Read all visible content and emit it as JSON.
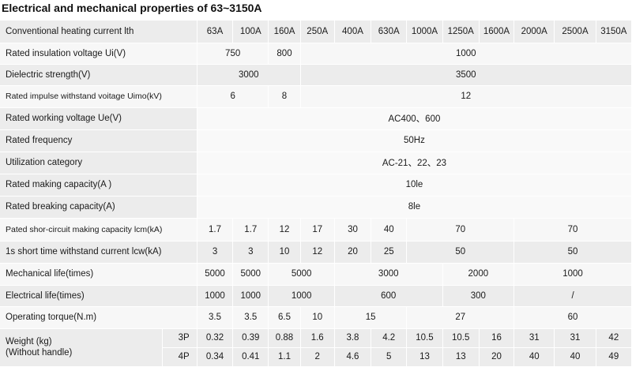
{
  "title": "Electrical and mechanical properties of 63~3150A",
  "header": {
    "label": "Conventional heating current lth",
    "currents": [
      "63A",
      "100A",
      "160A",
      "250A",
      "400A",
      "630A",
      "1000A",
      "1250A",
      "1600A",
      "2000A",
      "2500A",
      "3150A"
    ]
  },
  "rows": {
    "insulation": {
      "label": "Rated insulation voltage Ui(V)",
      "v1": "750",
      "v2": "800",
      "v3": "1000"
    },
    "dielectric": {
      "label": "Dielectric strength(V)",
      "v1": "3000",
      "v2": "3500"
    },
    "impulse": {
      "label": "Rated impulse withstand voitage Uimo(kV)",
      "v1": "6",
      "v2": "8",
      "v3": "12"
    },
    "working_voltage": {
      "label": "Rated working voltage Ue(V)",
      "value": "AC400、600"
    },
    "frequency": {
      "label": "Rated frequency",
      "value": "50Hz"
    },
    "utilization": {
      "label": "Utilization category",
      "value": "AC-21、22、23"
    },
    "making": {
      "label": "Rated making capacity(A )",
      "value": "10le"
    },
    "breaking": {
      "label": "Rated breaking capacity(A)",
      "value": "8le"
    },
    "short_making": {
      "label": "Pated shor-circuit making capacity lcm(kA)",
      "values": [
        "1.7",
        "1.7",
        "12",
        "17",
        "30",
        "40"
      ],
      "v70a": "70",
      "v70b": "70"
    },
    "short_time": {
      "label": "1s short time withstand current lcw(kA)",
      "values": [
        "3",
        "3",
        "10",
        "12",
        "20",
        "25"
      ],
      "v50a": "50",
      "v50b": "50"
    },
    "mechanical": {
      "label": "Mechanical life(times)",
      "v1": "5000",
      "v2": "5000",
      "v3": "5000",
      "v4": "3000",
      "v5": "2000",
      "v6": "1000"
    },
    "electrical": {
      "label": "Electrical life(times)",
      "v1": "1000",
      "v2": "1000",
      "v3": "1000",
      "v4": "600",
      "v5": "300",
      "v6": "/"
    },
    "torque": {
      "label": "Operating torque(N.m)",
      "v1": "3.5",
      "v2": "3.5",
      "v3": "6.5",
      "v4": "10",
      "v5": "15",
      "v6": "27",
      "v7": "60"
    },
    "weight": {
      "label_line1": "Weight (kg)",
      "label_line2": "(Without handle)",
      "p3": {
        "label": "3P",
        "values": [
          "0.32",
          "0.39",
          "0.88",
          "1.6",
          "3.8",
          "4.2",
          "10.5",
          "10.5",
          "16",
          "31",
          "31",
          "42"
        ]
      },
      "p4": {
        "label": "4P",
        "values": [
          "0.34",
          "0.41",
          "1.1",
          "2",
          "4.6",
          "5",
          "13",
          "13",
          "20",
          "40",
          "40",
          "49"
        ]
      }
    }
  }
}
